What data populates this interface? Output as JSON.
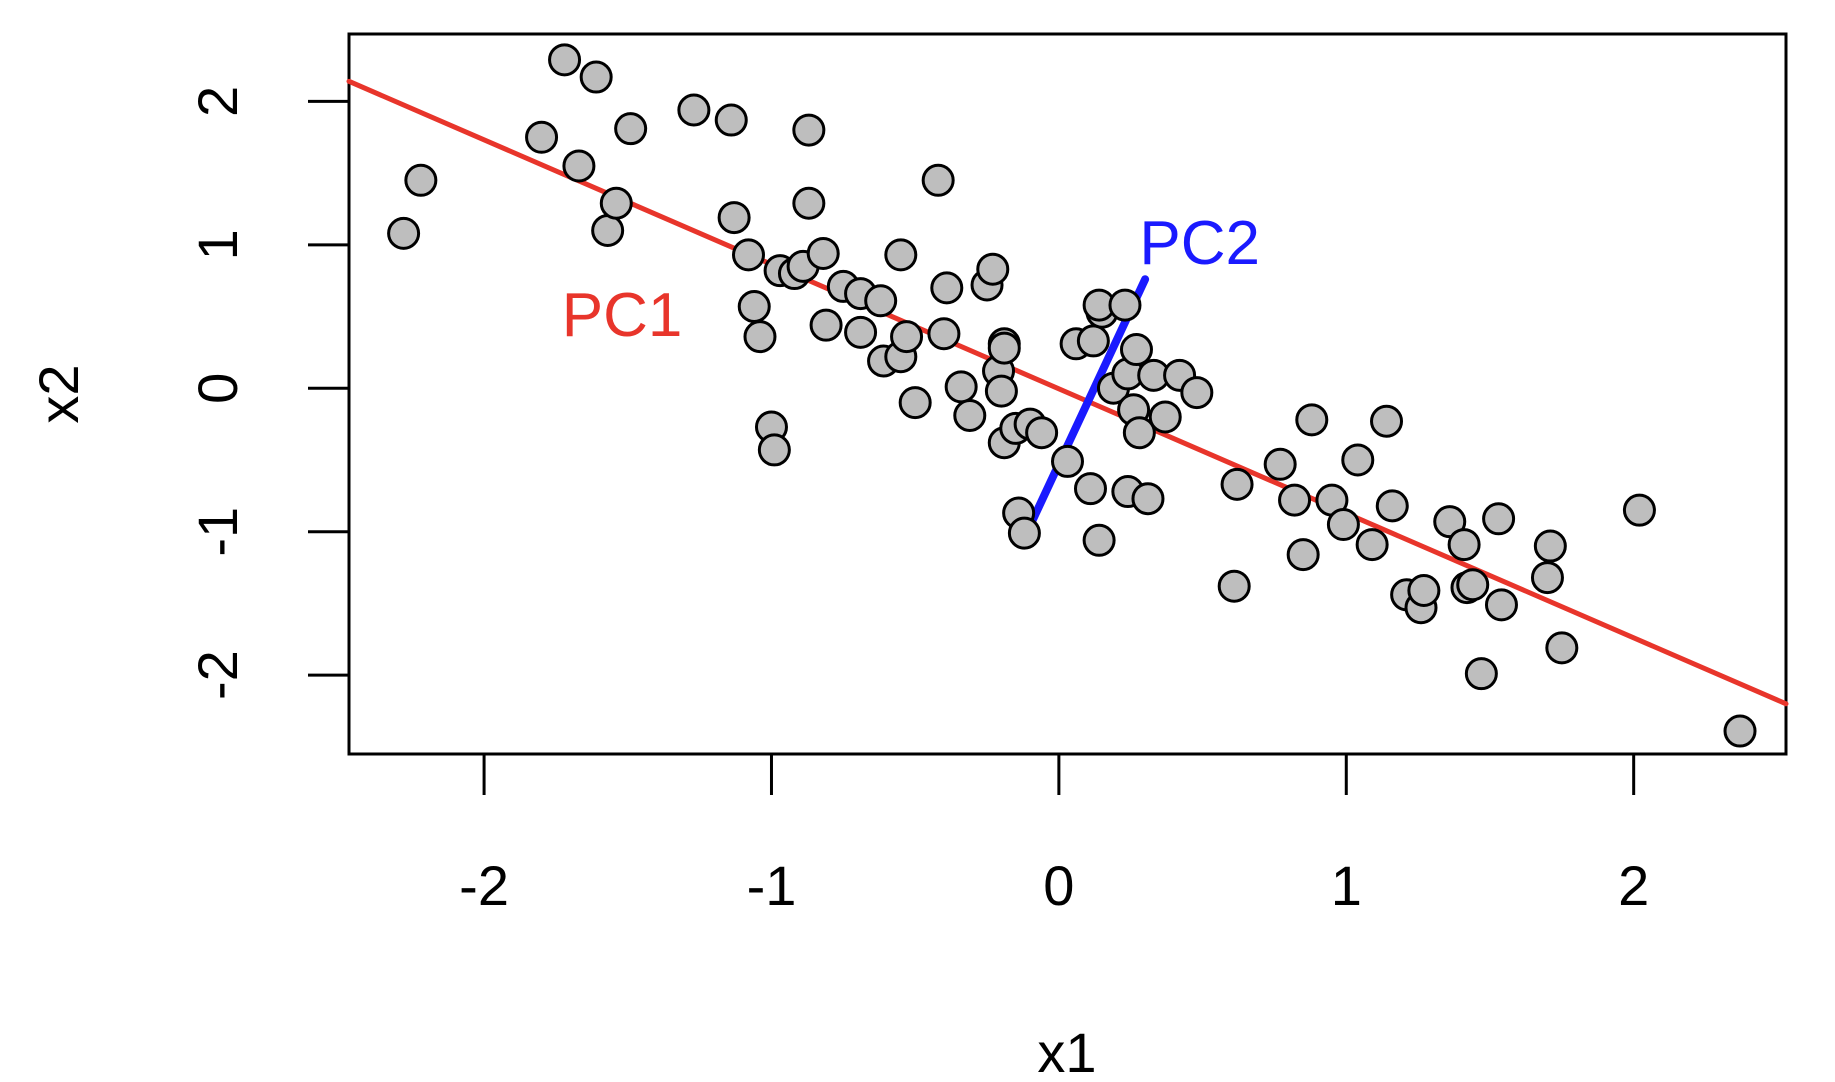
{
  "chart_data": {
    "type": "scatter",
    "title": "",
    "xlabel": "x1",
    "ylabel": "x2",
    "xlim": [
      -2.47,
      2.53
    ],
    "ylim": [
      -2.55,
      2.47
    ],
    "x_ticks": [
      -2,
      -1,
      0,
      1,
      2
    ],
    "y_ticks": [
      -2,
      -1,
      0,
      1,
      2
    ],
    "x_tick_labels": [
      "-2",
      "-1",
      "0",
      "1",
      "2"
    ],
    "y_tick_labels": [
      "-2",
      "-1",
      "0",
      "1",
      "2"
    ],
    "grid": false,
    "legend": "none",
    "point_fill": "#bebebe",
    "point_stroke": "#000000",
    "points": [
      [
        -2.28,
        1.08
      ],
      [
        -2.22,
        1.45
      ],
      [
        -1.8,
        1.75
      ],
      [
        -1.72,
        2.29
      ],
      [
        -1.67,
        1.55
      ],
      [
        -1.61,
        2.17
      ],
      [
        -1.57,
        1.1
      ],
      [
        -1.54,
        1.29
      ],
      [
        -1.49,
        1.81
      ],
      [
        -1.27,
        1.94
      ],
      [
        -1.14,
        1.87
      ],
      [
        -1.13,
        1.19
      ],
      [
        -1.08,
        0.93
      ],
      [
        -1.06,
        0.57
      ],
      [
        -1.04,
        0.36
      ],
      [
        -1.0,
        -0.27
      ],
      [
        -0.99,
        -0.43
      ],
      [
        -0.97,
        0.82
      ],
      [
        -0.92,
        0.8
      ],
      [
        -0.89,
        0.85
      ],
      [
        -0.87,
        1.8
      ],
      [
        -0.87,
        1.29
      ],
      [
        -0.82,
        0.94
      ],
      [
        -0.81,
        0.44
      ],
      [
        -0.75,
        0.71
      ],
      [
        -0.69,
        0.39
      ],
      [
        -0.69,
        0.66
      ],
      [
        -0.62,
        0.61
      ],
      [
        -0.61,
        0.19
      ],
      [
        -0.55,
        0.93
      ],
      [
        -0.55,
        0.22
      ],
      [
        -0.53,
        0.36
      ],
      [
        -0.5,
        -0.1
      ],
      [
        -0.42,
        1.45
      ],
      [
        -0.39,
        0.7
      ],
      [
        -0.4,
        0.38
      ],
      [
        -0.34,
        0.01
      ],
      [
        -0.31,
        -0.19
      ],
      [
        -0.25,
        0.72
      ],
      [
        -0.23,
        0.83
      ],
      [
        -0.21,
        0.12
      ],
      [
        -0.2,
        -0.02
      ],
      [
        -0.19,
        0.31
      ],
      [
        -0.19,
        0.28
      ],
      [
        -0.19,
        -0.38
      ],
      [
        -0.15,
        -0.28
      ],
      [
        -0.14,
        -0.87
      ],
      [
        -0.12,
        -1.01
      ],
      [
        -0.1,
        -0.25
      ],
      [
        -0.06,
        -0.31
      ],
      [
        0.03,
        -0.51
      ],
      [
        0.06,
        0.31
      ],
      [
        0.11,
        -0.7
      ],
      [
        0.12,
        0.33
      ],
      [
        0.14,
        -1.06
      ],
      [
        0.15,
        0.53
      ],
      [
        0.14,
        0.58
      ],
      [
        0.19,
        0.0
      ],
      [
        0.24,
        -0.72
      ],
      [
        0.23,
        0.58
      ],
      [
        0.24,
        0.1
      ],
      [
        0.26,
        -0.15
      ],
      [
        0.27,
        0.27
      ],
      [
        0.28,
        -0.31
      ],
      [
        0.31,
        -0.77
      ],
      [
        0.33,
        0.09
      ],
      [
        0.37,
        -0.2
      ],
      [
        0.42,
        0.09
      ],
      [
        0.48,
        -0.03
      ],
      [
        0.61,
        -1.38
      ],
      [
        0.62,
        -0.67
      ],
      [
        0.77,
        -0.53
      ],
      [
        0.82,
        -0.78
      ],
      [
        0.85,
        -1.16
      ],
      [
        0.88,
        -0.22
      ],
      [
        0.95,
        -0.78
      ],
      [
        0.99,
        -0.95
      ],
      [
        1.04,
        -0.5
      ],
      [
        1.09,
        -1.09
      ],
      [
        1.14,
        -0.23
      ],
      [
        1.16,
        -0.82
      ],
      [
        1.21,
        -1.44
      ],
      [
        1.26,
        -1.53
      ],
      [
        1.27,
        -1.41
      ],
      [
        1.36,
        -0.93
      ],
      [
        1.41,
        -1.09
      ],
      [
        1.42,
        -1.39
      ],
      [
        1.44,
        -1.37
      ],
      [
        1.47,
        -1.99
      ],
      [
        1.54,
        -1.51
      ],
      [
        1.53,
        -0.91
      ],
      [
        1.7,
        -1.32
      ],
      [
        1.71,
        -1.1
      ],
      [
        1.75,
        -1.81
      ],
      [
        2.02,
        -0.85
      ],
      [
        2.37,
        -2.39
      ]
    ],
    "lines": [
      {
        "name": "PC1",
        "color": "#e8352b",
        "x": [
          -2.47,
          2.53
        ],
        "y": [
          2.14,
          -2.2
        ]
      },
      {
        "name": "PC2",
        "color": "#1a1aff",
        "x": [
          -0.11,
          0.3
        ],
        "y": [
          -1.0,
          0.76
        ]
      }
    ],
    "annotations": [
      {
        "text": "PC1",
        "color": "#e8352b",
        "x": -1.52,
        "y": 0.48
      },
      {
        "text": "PC2",
        "color": "#1a1aff",
        "x": 0.49,
        "y": 0.98
      }
    ]
  }
}
